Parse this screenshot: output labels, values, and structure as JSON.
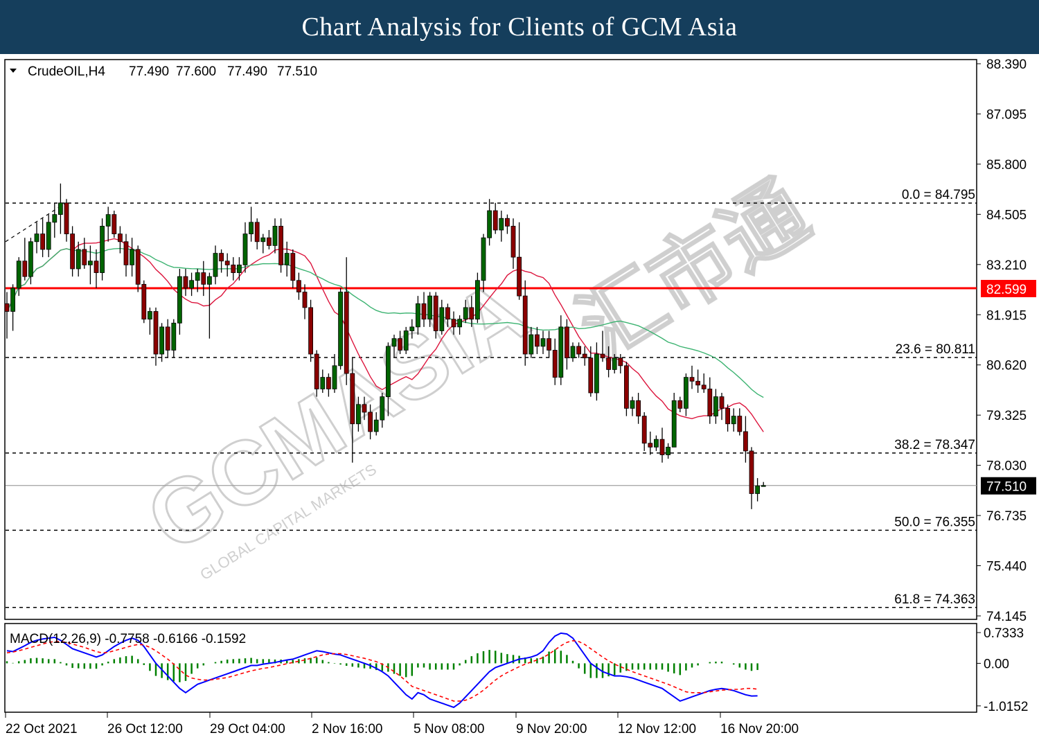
{
  "banner": {
    "title": "Chart Analysis for Clients of GCM Asia"
  },
  "chart_data": {
    "type": "candlestick",
    "symbol_label": "CrudeOIL,H4",
    "ohlc": {
      "open": "77.490",
      "high": "77.600",
      "low": "77.490",
      "close": "77.510"
    },
    "y_ticks": [
      "88.390",
      "87.095",
      "85.800",
      "84.505",
      "83.210",
      "81.915",
      "80.620",
      "79.325",
      "78.030",
      "76.735",
      "75.440",
      "74.145"
    ],
    "y_range": [
      74.145,
      88.39
    ],
    "x_ticks": [
      "22 Oct 2021",
      "26 Oct 12:00",
      "29 Oct 04:00",
      "2 Nov 16:00",
      "5 Nov 08:00",
      "9 Nov 20:00",
      "12 Nov 12:00",
      "16 Nov 20:00"
    ],
    "current_price": {
      "value": 77.51,
      "label": "77.510"
    },
    "resistance_line": {
      "value": 82.599,
      "label": "82.599",
      "color": "#ff0000"
    },
    "fib_levels": [
      {
        "value": 84.795,
        "label": "0.0 = 84.795"
      },
      {
        "value": 80.811,
        "label": "23.6 = 80.811"
      },
      {
        "value": 78.347,
        "label": "38.2 = 78.347"
      },
      {
        "value": 76.355,
        "label": "50.0 = 76.355"
      },
      {
        "value": 74.363,
        "label": "61.8 = 74.363"
      }
    ],
    "candles": [
      [
        82.2,
        82.5,
        81.3,
        82.0
      ],
      [
        82.0,
        82.7,
        81.5,
        82.6
      ],
      [
        82.6,
        83.4,
        82.4,
        83.3
      ],
      [
        83.3,
        83.9,
        82.8,
        82.9
      ],
      [
        82.9,
        83.9,
        82.7,
        83.8
      ],
      [
        83.8,
        84.3,
        83.5,
        84.0
      ],
      [
        84.0,
        84.4,
        83.4,
        83.6
      ],
      [
        83.6,
        84.5,
        83.4,
        84.3
      ],
      [
        84.3,
        84.8,
        83.9,
        84.5
      ],
      [
        84.5,
        85.3,
        84.0,
        84.8
      ],
      [
        84.8,
        84.9,
        83.8,
        84.0
      ],
      [
        84.0,
        84.2,
        82.9,
        83.1
      ],
      [
        83.1,
        83.8,
        82.9,
        83.6
      ],
      [
        83.6,
        83.9,
        83.1,
        83.2
      ],
      [
        83.2,
        83.7,
        82.7,
        83.3
      ],
      [
        83.3,
        83.6,
        82.6,
        83.0
      ],
      [
        83.0,
        84.4,
        82.8,
        84.2
      ],
      [
        84.2,
        84.7,
        83.8,
        84.5
      ],
      [
        84.5,
        84.6,
        83.9,
        84.0
      ],
      [
        84.0,
        84.2,
        83.5,
        83.8
      ],
      [
        83.8,
        84.0,
        82.9,
        83.2
      ],
      [
        83.2,
        83.9,
        82.9,
        83.6
      ],
      [
        83.6,
        83.7,
        82.5,
        82.7
      ],
      [
        82.7,
        82.8,
        81.7,
        81.8
      ],
      [
        81.8,
        82.1,
        81.4,
        82.0
      ],
      [
        82.0,
        82.1,
        80.6,
        80.9
      ],
      [
        80.9,
        81.7,
        80.7,
        81.6
      ],
      [
        81.6,
        81.8,
        80.8,
        81.0
      ],
      [
        81.0,
        81.8,
        80.8,
        81.7
      ],
      [
        81.7,
        83.1,
        81.4,
        82.9
      ],
      [
        82.9,
        83.1,
        82.4,
        82.6
      ],
      [
        82.6,
        83.0,
        82.4,
        82.8
      ],
      [
        82.8,
        83.1,
        82.5,
        83.0
      ],
      [
        83.0,
        83.3,
        82.4,
        82.7
      ],
      [
        82.7,
        83.0,
        81.3,
        82.9
      ],
      [
        82.9,
        83.7,
        82.7,
        83.5
      ],
      [
        83.5,
        83.6,
        83.0,
        83.3
      ],
      [
        83.3,
        83.5,
        82.9,
        83.2
      ],
      [
        83.2,
        83.4,
        82.8,
        83.0
      ],
      [
        83.0,
        83.4,
        82.8,
        83.2
      ],
      [
        83.2,
        84.3,
        83.0,
        84.0
      ],
      [
        84.0,
        84.7,
        83.8,
        84.3
      ],
      [
        84.3,
        84.4,
        83.6,
        83.8
      ],
      [
        83.8,
        84.0,
        83.5,
        83.9
      ],
      [
        83.9,
        84.1,
        83.6,
        83.7
      ],
      [
        83.7,
        84.4,
        83.5,
        84.2
      ],
      [
        84.2,
        84.4,
        83.0,
        83.2
      ],
      [
        83.2,
        83.8,
        82.9,
        83.5
      ],
      [
        83.5,
        83.6,
        82.6,
        82.8
      ],
      [
        82.8,
        83.0,
        82.3,
        82.5
      ],
      [
        82.5,
        82.7,
        81.8,
        82.1
      ],
      [
        82.1,
        82.3,
        80.7,
        80.9
      ],
      [
        80.9,
        81.0,
        79.8,
        80.0
      ],
      [
        80.0,
        80.5,
        79.9,
        80.3
      ],
      [
        80.3,
        80.4,
        79.8,
        80.0
      ],
      [
        80.0,
        80.9,
        79.9,
        80.6
      ],
      [
        80.6,
        82.6,
        80.5,
        82.5
      ],
      [
        82.5,
        83.4,
        80.1,
        80.4
      ],
      [
        80.4,
        80.8,
        78.1,
        79.1
      ],
      [
        79.1,
        79.8,
        78.9,
        79.6
      ],
      [
        79.6,
        79.8,
        79.2,
        79.4
      ],
      [
        79.4,
        79.6,
        78.7,
        78.9
      ],
      [
        78.9,
        79.4,
        78.8,
        79.2
      ],
      [
        79.2,
        79.9,
        79.0,
        79.8
      ],
      [
        79.8,
        81.2,
        79.3,
        81.1
      ],
      [
        81.1,
        81.4,
        80.8,
        81.3
      ],
      [
        81.3,
        81.5,
        80.9,
        81.0
      ],
      [
        81.0,
        81.6,
        80.9,
        81.5
      ],
      [
        81.5,
        81.8,
        81.3,
        81.6
      ],
      [
        81.6,
        82.4,
        81.4,
        82.2
      ],
      [
        82.2,
        82.5,
        81.6,
        81.8
      ],
      [
        81.8,
        82.5,
        81.6,
        82.4
      ],
      [
        82.4,
        82.5,
        81.3,
        81.5
      ],
      [
        81.5,
        82.3,
        81.4,
        82.1
      ],
      [
        82.1,
        82.2,
        81.6,
        81.8
      ],
      [
        81.8,
        82.0,
        81.4,
        81.6
      ],
      [
        81.6,
        81.9,
        81.4,
        81.8
      ],
      [
        81.8,
        82.3,
        81.7,
        82.1
      ],
      [
        82.1,
        82.4,
        81.6,
        81.8
      ],
      [
        81.8,
        83.0,
        81.7,
        82.8
      ],
      [
        82.8,
        84.0,
        82.5,
        83.9
      ],
      [
        83.9,
        84.9,
        83.7,
        84.6
      ],
      [
        84.6,
        84.8,
        84.0,
        84.1
      ],
      [
        84.1,
        84.6,
        83.8,
        84.4
      ],
      [
        84.4,
        84.5,
        84.0,
        84.2
      ],
      [
        84.2,
        84.4,
        83.1,
        83.4
      ],
      [
        83.4,
        84.3,
        82.3,
        82.4
      ],
      [
        82.4,
        82.8,
        80.6,
        80.9
      ],
      [
        80.9,
        81.6,
        80.8,
        81.4
      ],
      [
        81.4,
        81.6,
        80.9,
        81.1
      ],
      [
        81.1,
        81.5,
        80.9,
        81.3
      ],
      [
        81.3,
        81.5,
        80.8,
        81.0
      ],
      [
        81.0,
        81.3,
        80.1,
        80.3
      ],
      [
        80.3,
        81.9,
        80.1,
        81.6
      ],
      [
        81.6,
        81.8,
        80.5,
        80.8
      ],
      [
        80.8,
        81.2,
        80.7,
        81.1
      ],
      [
        81.1,
        81.2,
        80.8,
        80.9
      ],
      [
        80.9,
        81.1,
        80.6,
        80.8
      ],
      [
        80.8,
        81.1,
        79.8,
        79.9
      ],
      [
        79.9,
        81.2,
        79.7,
        80.9
      ],
      [
        80.9,
        81.5,
        80.7,
        80.8
      ],
      [
        80.8,
        81.1,
        80.3,
        80.5
      ],
      [
        80.5,
        80.9,
        80.4,
        80.8
      ],
      [
        80.8,
        80.9,
        80.4,
        80.6
      ],
      [
        80.6,
        80.7,
        79.3,
        79.5
      ],
      [
        79.5,
        79.8,
        79.3,
        79.7
      ],
      [
        79.7,
        79.9,
        79.1,
        79.3
      ],
      [
        79.3,
        79.4,
        78.4,
        78.6
      ],
      [
        78.6,
        78.9,
        78.3,
        78.5
      ],
      [
        78.5,
        78.8,
        78.4,
        78.7
      ],
      [
        78.7,
        79.0,
        78.1,
        78.3
      ],
      [
        78.3,
        78.6,
        78.2,
        78.5
      ],
      [
        78.5,
        79.9,
        78.5,
        79.7
      ],
      [
        79.7,
        79.8,
        79.4,
        79.5
      ],
      [
        79.5,
        80.4,
        79.3,
        80.3
      ],
      [
        80.3,
        80.6,
        80.0,
        80.2
      ],
      [
        80.2,
        80.5,
        79.9,
        80.1
      ],
      [
        80.1,
        80.4,
        79.9,
        80.0
      ],
      [
        80.0,
        80.3,
        79.1,
        79.3
      ],
      [
        79.3,
        80.0,
        79.1,
        79.8
      ],
      [
        79.8,
        79.9,
        79.2,
        79.5
      ],
      [
        79.5,
        79.6,
        78.9,
        79.1
      ],
      [
        79.1,
        79.5,
        78.9,
        79.3
      ],
      [
        79.3,
        79.5,
        78.8,
        78.9
      ],
      [
        78.9,
        79.3,
        78.1,
        78.4
      ],
      [
        78.4,
        78.5,
        76.9,
        77.3
      ],
      [
        77.3,
        77.7,
        77.1,
        77.5
      ],
      [
        77.49,
        77.6,
        77.49,
        77.51
      ]
    ],
    "indicator": {
      "label": "MACD(12,26,9) -0.7758 -0.6166 -0.1592",
      "y_ticks": [
        "0.7333",
        "0.00",
        "-1.0152"
      ],
      "y_range": [
        -1.1,
        0.85
      ],
      "macd_line": [
        0.3,
        0.28,
        0.35,
        0.42,
        0.5,
        0.55,
        0.58,
        0.6,
        0.62,
        0.55,
        0.45,
        0.35,
        0.3,
        0.25,
        0.2,
        0.15,
        0.2,
        0.3,
        0.4,
        0.48,
        0.55,
        0.6,
        0.55,
        0.4,
        0.2,
        0.0,
        -0.15,
        -0.3,
        -0.45,
        -0.6,
        -0.7,
        -0.6,
        -0.5,
        -0.45,
        -0.4,
        -0.35,
        -0.3,
        -0.25,
        -0.2,
        -0.15,
        -0.1,
        -0.05,
        -0.05,
        -0.02,
        0.0,
        0.02,
        0.05,
        0.08,
        0.1,
        0.15,
        0.2,
        0.25,
        0.3,
        0.28,
        0.25,
        0.22,
        0.2,
        0.15,
        0.1,
        0.05,
        0.0,
        -0.05,
        -0.12,
        -0.2,
        -0.3,
        -0.45,
        -0.6,
        -0.75,
        -0.85,
        -0.7,
        -0.75,
        -0.85,
        -0.9,
        -0.95,
        -1.0,
        -1.05,
        -0.95,
        -0.8,
        -0.65,
        -0.5,
        -0.35,
        -0.2,
        -0.1,
        -0.05,
        0.0,
        0.05,
        0.1,
        0.12,
        0.15,
        0.2,
        0.3,
        0.5,
        0.65,
        0.72,
        0.7,
        0.6,
        0.4,
        0.2,
        0.0,
        -0.1,
        -0.2,
        -0.25,
        -0.3,
        -0.3,
        -0.32,
        -0.35,
        -0.4,
        -0.45,
        -0.5,
        -0.55,
        -0.6,
        -0.7,
        -0.8,
        -0.9,
        -0.85,
        -0.8,
        -0.75,
        -0.7,
        -0.65,
        -0.62,
        -0.6,
        -0.62,
        -0.65,
        -0.7,
        -0.75,
        -0.78,
        -0.7758
      ],
      "signal_line": [
        0.25,
        0.27,
        0.3,
        0.34,
        0.38,
        0.42,
        0.46,
        0.5,
        0.52,
        0.52,
        0.5,
        0.46,
        0.42,
        0.38,
        0.33,
        0.28,
        0.25,
        0.26,
        0.3,
        0.34,
        0.38,
        0.42,
        0.45,
        0.44,
        0.38,
        0.3,
        0.2,
        0.1,
        -0.02,
        -0.15,
        -0.28,
        -0.35,
        -0.38,
        -0.4,
        -0.4,
        -0.38,
        -0.36,
        -0.34,
        -0.3,
        -0.26,
        -0.22,
        -0.18,
        -0.15,
        -0.12,
        -0.1,
        -0.07,
        -0.04,
        -0.01,
        0.02,
        0.05,
        0.08,
        0.12,
        0.16,
        0.2,
        0.22,
        0.23,
        0.23,
        0.21,
        0.18,
        0.15,
        0.12,
        0.08,
        0.04,
        -0.02,
        -0.1,
        -0.2,
        -0.3,
        -0.42,
        -0.55,
        -0.6,
        -0.65,
        -0.7,
        -0.75,
        -0.8,
        -0.85,
        -0.9,
        -0.9,
        -0.88,
        -0.82,
        -0.74,
        -0.64,
        -0.52,
        -0.4,
        -0.3,
        -0.22,
        -0.15,
        -0.08,
        -0.02,
        0.03,
        0.08,
        0.14,
        0.22,
        0.32,
        0.42,
        0.5,
        0.54,
        0.52,
        0.45,
        0.35,
        0.25,
        0.15,
        0.06,
        -0.02,
        -0.08,
        -0.14,
        -0.2,
        -0.25,
        -0.3,
        -0.35,
        -0.4,
        -0.45,
        -0.5,
        -0.56,
        -0.62,
        -0.68,
        -0.7,
        -0.7,
        -0.7,
        -0.68,
        -0.66,
        -0.64,
        -0.63,
        -0.62,
        -0.62,
        -0.6,
        -0.6,
        -0.6166
      ],
      "histogram": [
        0.05,
        0.01,
        0.05,
        0.08,
        0.12,
        0.13,
        0.12,
        0.1,
        0.1,
        0.03,
        -0.05,
        -0.11,
        -0.12,
        -0.13,
        -0.13,
        -0.13,
        -0.05,
        0.04,
        0.1,
        0.14,
        0.17,
        0.18,
        0.1,
        -0.04,
        -0.18,
        -0.3,
        -0.35,
        -0.4,
        -0.43,
        -0.45,
        -0.42,
        -0.25,
        -0.12,
        -0.05,
        0.0,
        0.03,
        0.06,
        0.09,
        0.1,
        0.11,
        0.12,
        0.13,
        0.1,
        0.1,
        0.1,
        0.09,
        0.09,
        0.09,
        0.08,
        0.1,
        0.12,
        0.13,
        0.14,
        0.08,
        0.03,
        -0.01,
        -0.03,
        -0.06,
        -0.08,
        -0.1,
        -0.12,
        -0.13,
        -0.16,
        -0.18,
        -0.2,
        -0.25,
        -0.3,
        -0.33,
        -0.3,
        -0.1,
        -0.1,
        -0.15,
        -0.15,
        -0.15,
        -0.15,
        -0.15,
        -0.05,
        0.08,
        0.17,
        0.24,
        0.29,
        0.32,
        0.3,
        0.25,
        0.22,
        0.2,
        0.18,
        0.14,
        0.12,
        0.12,
        0.16,
        0.28,
        0.33,
        0.3,
        0.2,
        0.06,
        -0.12,
        -0.25,
        -0.35,
        -0.35,
        -0.35,
        -0.31,
        -0.28,
        -0.22,
        -0.18,
        -0.15,
        -0.15,
        -0.15,
        -0.15,
        -0.15,
        -0.15,
        -0.2,
        -0.24,
        -0.28,
        -0.17,
        -0.1,
        -0.05,
        0.0,
        0.03,
        0.04,
        0.04,
        0.0,
        -0.03,
        -0.1,
        -0.15,
        -0.18,
        -0.1592
      ]
    },
    "moving_averages": [
      {
        "color": "#dc143c"
      },
      {
        "color": "#3cb371"
      }
    ],
    "colors": {
      "bull": "#006400",
      "bear": "#8b0000",
      "grid": "#000000",
      "banner": "#153e5c"
    }
  },
  "watermark": {
    "brand": "GCMASIA",
    "tagline": "GLOBAL CAPITAL MARKETS",
    "chinese": "汇市通"
  }
}
